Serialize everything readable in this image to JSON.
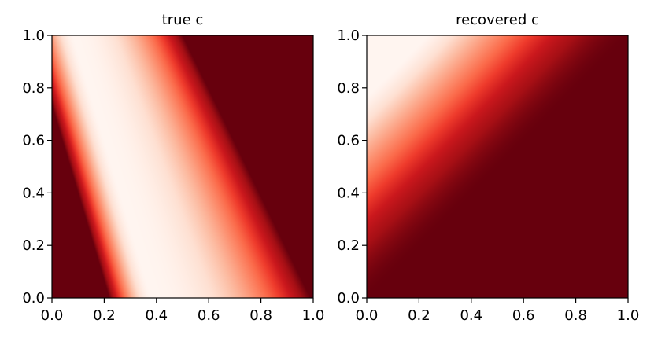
{
  "chart_data": [
    {
      "type": "heatmap",
      "title": "true c",
      "xlabel": "",
      "ylabel": "",
      "xlim": [
        0.0,
        1.0
      ],
      "ylim": [
        0.0,
        1.0
      ],
      "xticks": [
        "0.0",
        "0.2",
        "0.4",
        "0.6",
        "0.8",
        "1.0"
      ],
      "yticks": [
        "0.0",
        "0.2",
        "0.4",
        "0.6",
        "0.8",
        "1.0"
      ],
      "grid": false,
      "colormap": "Reds",
      "field": {
        "description": "diagonal bands: dark at lower-left corner, pale band through the middle, saturated dark red toward the upper-right",
        "pale_band_center_line": {
          "x_at_y0": 0.38,
          "x_at_y1": 0.08
        },
        "dark_edge_line": {
          "x_at_y0": 0.99,
          "x_at_y1": 0.5
        }
      }
    },
    {
      "type": "heatmap",
      "title": "recovered c",
      "xlabel": "",
      "ylabel": "",
      "xlim": [
        0.0,
        1.0
      ],
      "ylim": [
        0.0,
        1.0
      ],
      "xticks": [
        "0.0",
        "0.2",
        "0.4",
        "0.6",
        "0.8",
        "1.0"
      ],
      "yticks": [
        "0.0",
        "0.2",
        "0.4",
        "0.6",
        "0.8",
        "1.0"
      ],
      "grid": false,
      "colormap": "Reds",
      "field": {
        "description": "pale at upper-left corner, darkening toward the diagonal; saturated dark red below the diagonal"
      }
    }
  ],
  "colors": {
    "reds_light": "#fff5f0",
    "reds_mid": "#fb6a4a",
    "reds_dark": "#67000d"
  }
}
